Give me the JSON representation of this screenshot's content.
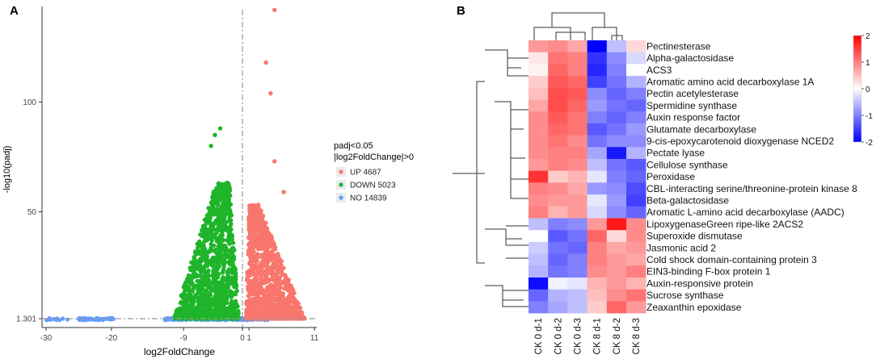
{
  "panels": {
    "a": "A",
    "b": "B"
  },
  "chart_data": [
    {
      "type": "scatter",
      "name": "volcano-plot",
      "xlabel": "log2FoldChange",
      "ylabel": "-log10(padj)",
      "x_ticks": [
        "-30",
        "-20",
        "-9",
        "0",
        "1",
        "11"
      ],
      "y_ticks": [
        "1.301",
        "50",
        "100"
      ],
      "legend": {
        "title_line1": "padj<0.05",
        "title_line2": "|log2FoldChange|>0",
        "entries": [
          {
            "label": "UP 4687",
            "color": "#f8766d"
          },
          {
            "label": "DOWN 5023",
            "color": "#1fb52a"
          },
          {
            "label": "NO 14839",
            "color": "#619cff"
          }
        ]
      },
      "threshold_lines": {
        "padj_y": 1.301,
        "fold_x": 0
      },
      "highlight_points": {
        "down": [
          {
            "x": -3.4,
            "y": 88
          },
          {
            "x": -4.2,
            "y": 85
          },
          {
            "x": -4.8,
            "y": 80
          },
          {
            "x": -2.5,
            "y": 56
          }
        ],
        "up": [
          {
            "x": 4.9,
            "y": 142
          },
          {
            "x": 3.6,
            "y": 118
          },
          {
            "x": 4.3,
            "y": 104
          },
          {
            "x": 4.9,
            "y": 73
          },
          {
            "x": 6.3,
            "y": 59
          }
        ]
      }
    },
    {
      "type": "heatmap",
      "name": "expression-heatmap",
      "columns": [
        "CK 0 d-1",
        "CK 0 d-2",
        "CK 0 d-3",
        "CK 8 d-1",
        "CK 8 d-2",
        "CK 8 d-3"
      ],
      "rows": [
        "Pectinesterase",
        "Alpha-galactosidase",
        "ACS3",
        "Aromatic amino acid decarboxylase 1A",
        "Pectin acetylesterase",
        "Spermidine synthase",
        "Auxin response factor",
        "Glutamate decarboxylase",
        "9-cis-epoxycarotenoid dioxygenase NCED2",
        "Pectate lyase",
        "Cellulose synthase",
        "Peroxidase",
        "CBL-interacting serine/threonine-protein kinase 8",
        "Beta-galactosidase",
        "Aromatic L-amino acid decarboxylase (AADC)",
        "LipoxygenaseGreen ripe-like 2ACS2",
        "Superoxide dismutase",
        "Jasmonic acid 2",
        "Cold shock domain-containing protein 3",
        "EIN3-binding F-box protein 1",
        "Auxin-responsive protein",
        "Sucrose synthase",
        "Zeaxanthin epoxidase"
      ],
      "values": [
        [
          0.8,
          0.9,
          0.7,
          -2.0,
          -0.5,
          0.3
        ],
        [
          0.2,
          1.1,
          1.0,
          -1.6,
          -0.9,
          -0.3
        ],
        [
          0.1,
          1.2,
          1.0,
          -1.7,
          -1.0,
          0.0
        ],
        [
          0.4,
          1.3,
          1.2,
          -1.5,
          -1.1,
          -0.6
        ],
        [
          0.5,
          1.4,
          1.3,
          -0.9,
          -1.2,
          -1.0
        ],
        [
          0.7,
          1.4,
          1.2,
          -0.8,
          -1.1,
          -1.2
        ],
        [
          0.9,
          1.3,
          1.1,
          -1.0,
          -1.2,
          -1.0
        ],
        [
          0.9,
          1.2,
          1.1,
          -1.3,
          -1.1,
          -0.8
        ],
        [
          0.9,
          1.1,
          0.9,
          -1.1,
          -0.9,
          -0.9
        ],
        [
          0.9,
          1.0,
          1.0,
          -0.7,
          -1.8,
          -0.6
        ],
        [
          0.8,
          1.0,
          0.9,
          -0.5,
          -1.1,
          -1.3
        ],
        [
          1.6,
          0.4,
          0.6,
          -0.2,
          -1.0,
          -1.2
        ],
        [
          1.0,
          0.9,
          0.7,
          -0.8,
          -0.9,
          -1.4
        ],
        [
          0.9,
          0.8,
          0.8,
          -0.2,
          -0.8,
          -1.5
        ],
        [
          1.0,
          0.6,
          0.8,
          -0.3,
          -0.9,
          -1.2
        ],
        [
          -0.5,
          -1.0,
          -0.9,
          0.8,
          1.8,
          0.9
        ],
        [
          0.0,
          -1.3,
          -1.1,
          1.2,
          0.3,
          0.9
        ],
        [
          -0.4,
          -1.1,
          -1.2,
          1.0,
          0.7,
          0.8
        ],
        [
          -0.5,
          -1.2,
          -1.0,
          1.0,
          0.8,
          0.7
        ],
        [
          -0.6,
          -1.1,
          -1.0,
          0.9,
          0.8,
          1.0
        ],
        [
          -1.9,
          -0.1,
          -0.2,
          0.6,
          0.8,
          0.6
        ],
        [
          -1.2,
          -0.6,
          -0.5,
          0.5,
          0.9,
          1.1
        ],
        [
          -1.0,
          -0.7,
          -0.5,
          0.4,
          1.2,
          0.8
        ]
      ],
      "color_scale": {
        "min": -2,
        "max": 2,
        "ticks": [
          "2",
          "1",
          "0",
          "-1",
          "-2"
        ],
        "low": "#0000ff",
        "mid": "#ffffff",
        "high": "#ff0000"
      }
    }
  ]
}
